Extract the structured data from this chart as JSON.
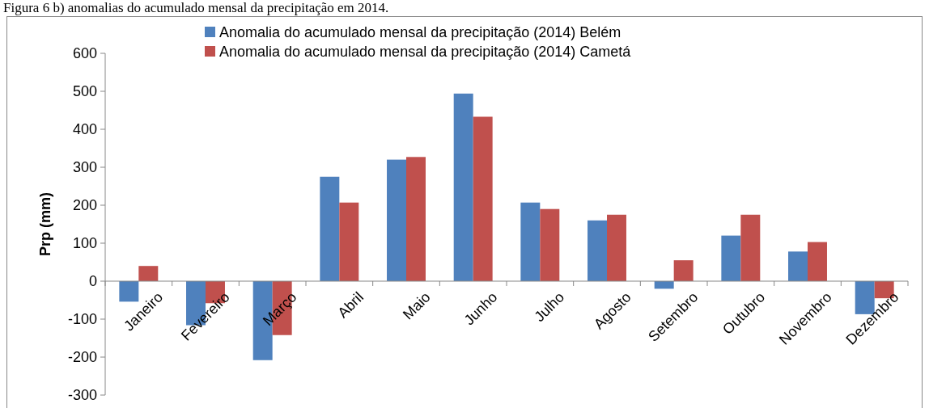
{
  "chart_data": {
    "type": "bar",
    "title": "Figura 6 b) anomalias do acumulado mensal da precipitação em 2014.",
    "ylabel": "Prp (mm)",
    "categories": [
      "Janeiro",
      "Fevereiro",
      "Março",
      "Abril",
      "Maio",
      "Junho",
      "Julho",
      "Agosto",
      "Setembro",
      "Outubro",
      "Novembro",
      "Dezembro"
    ],
    "series": [
      {
        "name": "Anomalia do acumulado mensal da precipitação (2014) Belém",
        "color": "#4f81bd",
        "values": [
          -54,
          -116,
          -208,
          275,
          320,
          494,
          207,
          160,
          -20,
          120,
          78,
          -87
        ]
      },
      {
        "name": "Anomalia do acumulado mensal da precipitação (2014) Cametá",
        "color": "#c0504d",
        "values": [
          40,
          -58,
          -142,
          207,
          327,
          433,
          190,
          175,
          55,
          175,
          103,
          -45
        ]
      }
    ],
    "ylim": [
      -300,
      600
    ],
    "yticks": [
      -300,
      -200,
      -100,
      0,
      100,
      200,
      300,
      400,
      500,
      600
    ],
    "grid": false,
    "legend": "top"
  }
}
